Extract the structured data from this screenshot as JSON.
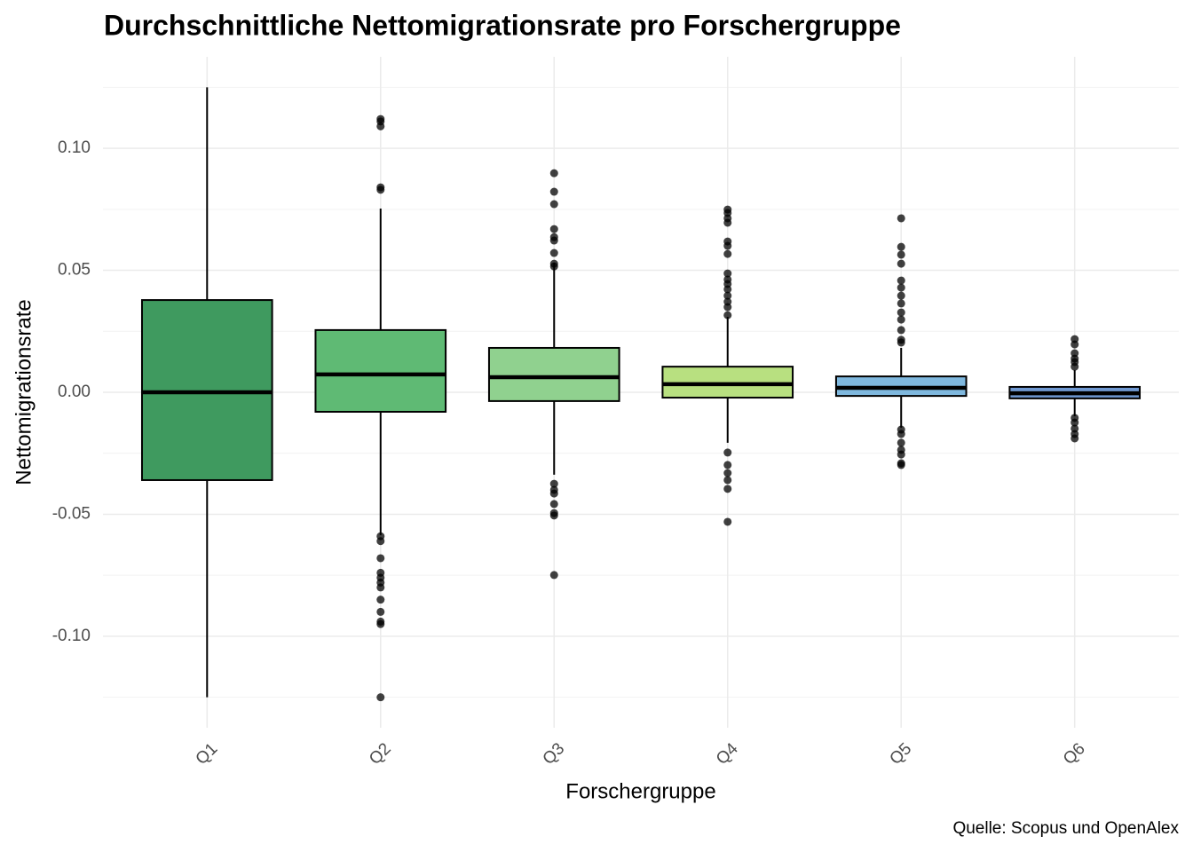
{
  "chart_data": {
    "type": "boxplot",
    "title": "Durchschnittliche Nettomigrationsrate pro Forschergruppe",
    "x_label": "Forschergruppe",
    "y_label": "Nettomigrationsrate",
    "caption": "Quelle: Scopus und OpenAlex",
    "categories": [
      "Q1",
      "Q2",
      "Q3",
      "Q4",
      "Q5",
      "Q6"
    ],
    "ylim": [
      -0.1375,
      0.1375
    ],
    "yticks": [
      {
        "value": -0.1,
        "label": "-0.10"
      },
      -0.05,
      {
        "value": 0,
        "label": "0.00"
      },
      0.05,
      {
        "value": 0.1,
        "label": "0.10"
      }
    ],
    "minor_yticks": [
      -0.125,
      -0.075,
      -0.025,
      0.025,
      0.075,
      0.125
    ],
    "grid": true,
    "boxes": [
      {
        "color": "#3f9a5f",
        "whisker_low": -0.125,
        "q1": -0.036,
        "median": 0,
        "q3": 0.0378,
        "whisker_high": 0.125,
        "outliers": []
      },
      {
        "color": "#5fba74",
        "whisker_low": -0.0585,
        "q1": -0.008,
        "median": 0.0073,
        "q3": 0.0255,
        "whisker_high": 0.0753,
        "outliers": [
          0.112,
          0.111,
          0.109,
          0.084,
          0.083,
          -0.059,
          -0.061,
          -0.068,
          -0.074,
          -0.076,
          -0.078,
          -0.08,
          -0.085,
          -0.09,
          -0.094,
          -0.095,
          -0.125
        ]
      },
      {
        "color": "#90d18f",
        "whisker_low": -0.0338,
        "q1": -0.0036,
        "median": 0.0062,
        "q3": 0.0182,
        "whisker_high": 0.0531,
        "outliers": [
          0.0898,
          0.0822,
          0.0771,
          0.0669,
          0.0636,
          0.0622,
          0.0571,
          0.0527,
          0.0516,
          -0.0375,
          -0.04,
          -0.0415,
          -0.0458,
          -0.0495,
          -0.0505,
          -0.0749
        ]
      },
      {
        "color": "#b8e080",
        "whisker_low": -0.0207,
        "q1": -0.0022,
        "median": 0.0033,
        "q3": 0.0105,
        "whisker_high": 0.0309,
        "outliers": [
          0.0749,
          0.0735,
          0.0713,
          0.0695,
          0.0618,
          0.06,
          0.0567,
          0.0487,
          0.0462,
          0.0444,
          0.0422,
          0.0396,
          0.0371,
          0.0349,
          0.0316,
          -0.0247,
          -0.0298,
          -0.0331,
          -0.036,
          -0.0396,
          -0.0531
        ]
      },
      {
        "color": "#7fb8de",
        "whisker_low": -0.0145,
        "q1": -0.0015,
        "median": 0.0018,
        "q3": 0.0065,
        "whisker_high": 0.0182,
        "outliers": [
          0.0713,
          0.0596,
          0.0564,
          0.0527,
          0.0458,
          0.0429,
          0.0396,
          0.0364,
          0.0327,
          0.0298,
          0.0255,
          0.0215,
          0.0204,
          -0.0153,
          -0.0171,
          -0.0207,
          -0.0236,
          -0.0255,
          -0.0291,
          -0.0298
        ]
      },
      {
        "color": "#6f98d1",
        "whisker_low": -0.0098,
        "q1": -0.0025,
        "median": -0.0004,
        "q3": 0.0022,
        "whisker_high": 0.0091,
        "outliers": [
          0.0218,
          0.0196,
          0.016,
          0.0138,
          0.0124,
          0.0105,
          -0.0105,
          -0.0124,
          -0.0149,
          -0.0171,
          -0.0189
        ]
      }
    ]
  }
}
